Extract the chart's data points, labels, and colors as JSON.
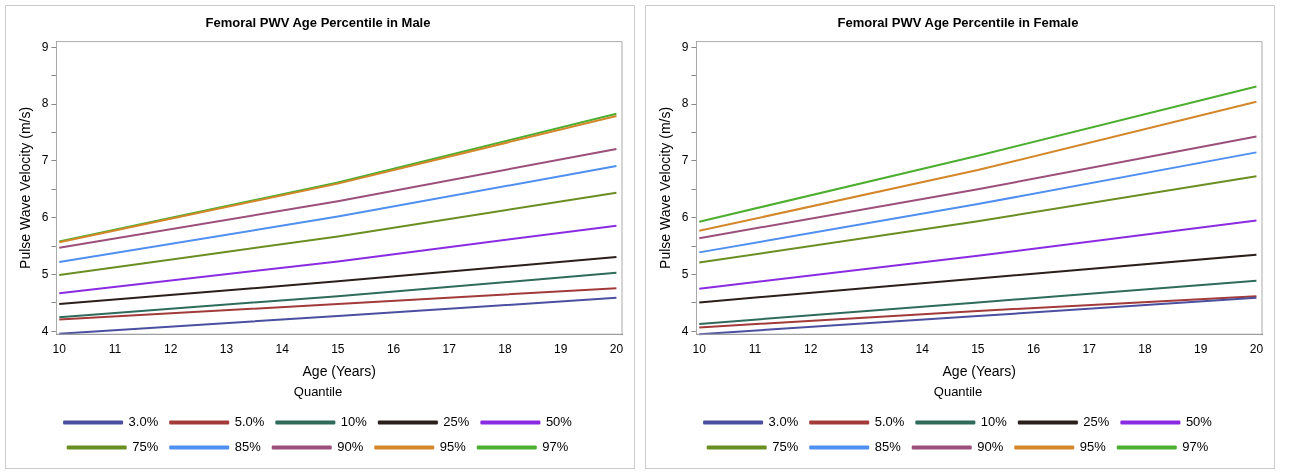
{
  "chart_data": [
    {
      "type": "line",
      "title": "Femoral PWV Age Percentile in Male",
      "xlabel": "Age (Years)",
      "ylabel": "Pulse Wave Velocity (m/s)",
      "legend_title": "Quantile",
      "legend": "bottom",
      "x": [
        10,
        15,
        20
      ],
      "xlim": [
        9.95,
        20.1
      ],
      "xticks": [
        10,
        11,
        12,
        13,
        14,
        15,
        16,
        17,
        18,
        19,
        20
      ],
      "ylim": [
        3.95,
        9.1
      ],
      "yticks": [
        4,
        {
          "value": 4.5,
          "label": null
        },
        5,
        {
          "value": 5.5,
          "label": null
        },
        6,
        {
          "value": 6.5,
          "label": null
        },
        7,
        {
          "value": 7.5,
          "label": null
        },
        8,
        {
          "value": 8.5,
          "label": null
        },
        9
      ],
      "grid": false,
      "marker": "none",
      "series": [
        {
          "name": "3.0%",
          "color": "#4b4fa0",
          "values": [
            3.96,
            4.27,
            4.59
          ]
        },
        {
          "name": "5.0%",
          "color": "#a33a3a",
          "values": [
            4.21,
            4.48,
            4.76
          ]
        },
        {
          "name": "10%",
          "color": "#2e6b5a",
          "values": [
            4.25,
            4.62,
            5.03
          ]
        },
        {
          "name": "25%",
          "color": "#2a1f1a",
          "values": [
            4.48,
            4.88,
            5.31
          ]
        },
        {
          "name": "50%",
          "color": "#8a2be2",
          "values": [
            4.67,
            5.23,
            5.86
          ]
        },
        {
          "name": "75%",
          "color": "#6b8e23",
          "values": [
            4.99,
            5.67,
            6.44
          ]
        },
        {
          "name": "85%",
          "color": "#4f8ff0",
          "values": [
            5.22,
            6.02,
            6.91
          ]
        },
        {
          "name": "90%",
          "color": "#9b4f7a",
          "values": [
            5.47,
            6.29,
            7.21
          ]
        },
        {
          "name": "95%",
          "color": "#d4862a",
          "values": [
            5.57,
            6.6,
            7.79
          ]
        },
        {
          "name": "97%",
          "color": "#4caf30",
          "values": [
            5.58,
            6.62,
            7.83
          ]
        }
      ]
    },
    {
      "type": "line",
      "title": "Femoral PWV Age Percentile in Female",
      "xlabel": "Age (Years)",
      "ylabel": "Pulse Wave Velocity (m/s)",
      "legend_title": "Quantile",
      "legend": "bottom",
      "x": [
        10,
        15,
        20
      ],
      "xlim": [
        9.95,
        20.1
      ],
      "xticks": [
        10,
        11,
        12,
        13,
        14,
        15,
        16,
        17,
        18,
        19,
        20
      ],
      "ylim": [
        3.95,
        9.1
      ],
      "yticks": [
        4,
        {
          "value": 4.5,
          "label": null
        },
        5,
        {
          "value": 5.5,
          "label": null
        },
        6,
        {
          "value": 6.5,
          "label": null
        },
        7,
        {
          "value": 7.5,
          "label": null
        },
        8,
        {
          "value": 8.5,
          "label": null
        },
        9
      ],
      "grid": false,
      "marker": "none",
      "series": [
        {
          "name": "3.0%",
          "color": "#4b4fa0",
          "values": [
            3.95,
            4.27,
            4.59
          ]
        },
        {
          "name": "5.0%",
          "color": "#a33a3a",
          "values": [
            4.07,
            4.36,
            4.62
          ]
        },
        {
          "name": "10%",
          "color": "#2e6b5a",
          "values": [
            4.13,
            4.51,
            4.89
          ]
        },
        {
          "name": "25%",
          "color": "#2a1f1a",
          "values": [
            4.51,
            4.93,
            5.35
          ]
        },
        {
          "name": "50%",
          "color": "#8a2be2",
          "values": [
            4.75,
            5.33,
            5.95
          ]
        },
        {
          "name": "75%",
          "color": "#6b8e23",
          "values": [
            5.21,
            5.94,
            6.73
          ]
        },
        {
          "name": "85%",
          "color": "#4f8ff0",
          "values": [
            5.39,
            6.24,
            7.15
          ]
        },
        {
          "name": "90%",
          "color": "#9b4f7a",
          "values": [
            5.64,
            6.5,
            7.43
          ]
        },
        {
          "name": "95%",
          "color": "#d4862a",
          "values": [
            5.77,
            6.84,
            8.04
          ]
        },
        {
          "name": "97%",
          "color": "#4caf30",
          "values": [
            5.93,
            7.09,
            8.31
          ]
        }
      ]
    }
  ]
}
